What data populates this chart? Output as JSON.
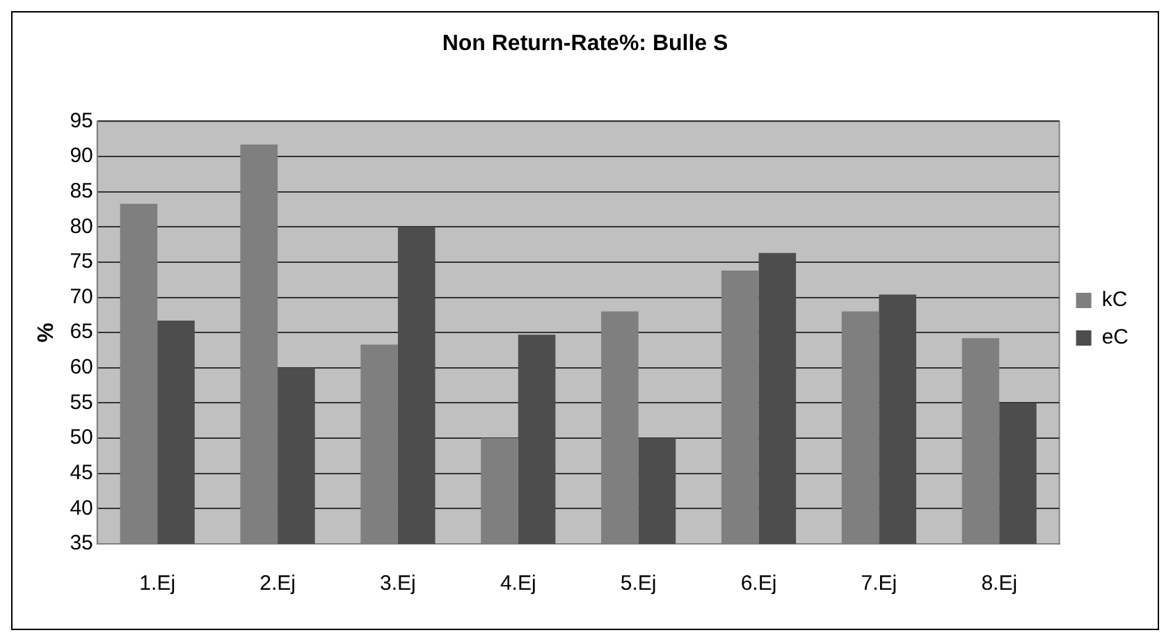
{
  "chart_data": {
    "type": "bar",
    "title": "Non Return-Rate%: Bulle S",
    "ylabel": "%",
    "categories": [
      "1.Ej",
      "2.Ej",
      "3.Ej",
      "4.Ej",
      "5.Ej",
      "6.Ej",
      "7.Ej",
      "8.Ej"
    ],
    "series": [
      {
        "name": "kC",
        "color": "#7f7f7f",
        "values": [
          83.3,
          91.7,
          63.3,
          50,
          68,
          73.8,
          68,
          64.2
        ]
      },
      {
        "name": "eC",
        "color": "#4d4d4d",
        "values": [
          66.7,
          60,
          80,
          64.7,
          50,
          76.3,
          70.4,
          55
        ]
      }
    ],
    "ylim": [
      35,
      95
    ],
    "yticks": [
      35,
      40,
      45,
      50,
      55,
      60,
      65,
      70,
      75,
      80,
      85,
      90,
      95
    ],
    "grid": "y",
    "legend": "right"
  }
}
